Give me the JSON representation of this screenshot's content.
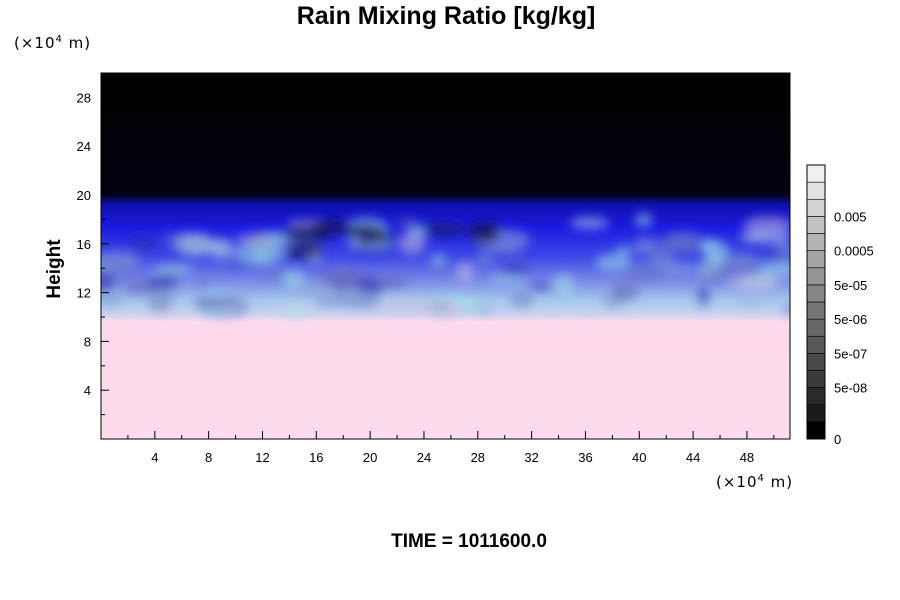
{
  "chart_data": {
    "type": "heatmap",
    "title": "Rain Mixing Ratio [kg/kg]",
    "ylabel": "Height",
    "x_unit": {
      "prefix": "(×10",
      "exp": "4",
      "suffix": " m)"
    },
    "y_unit": {
      "prefix": "(×10",
      "exp": "4",
      "suffix": " m)"
    },
    "xlim": [
      0,
      51.2
    ],
    "ylim": [
      0,
      30
    ],
    "x_ticks": [
      "4",
      "8",
      "12",
      "16",
      "20",
      "24",
      "28",
      "32",
      "36",
      "40",
      "44",
      "48"
    ],
    "y_ticks": [
      "4",
      "8",
      "12",
      "16",
      "20",
      "24",
      "28"
    ],
    "colorbar": {
      "labels": [
        "0.005",
        "0.0005",
        "5e-05",
        "5e-06",
        "5e-07",
        "5e-08",
        "0"
      ],
      "levels": 16
    },
    "footer": "TIME = 1011600.0"
  }
}
